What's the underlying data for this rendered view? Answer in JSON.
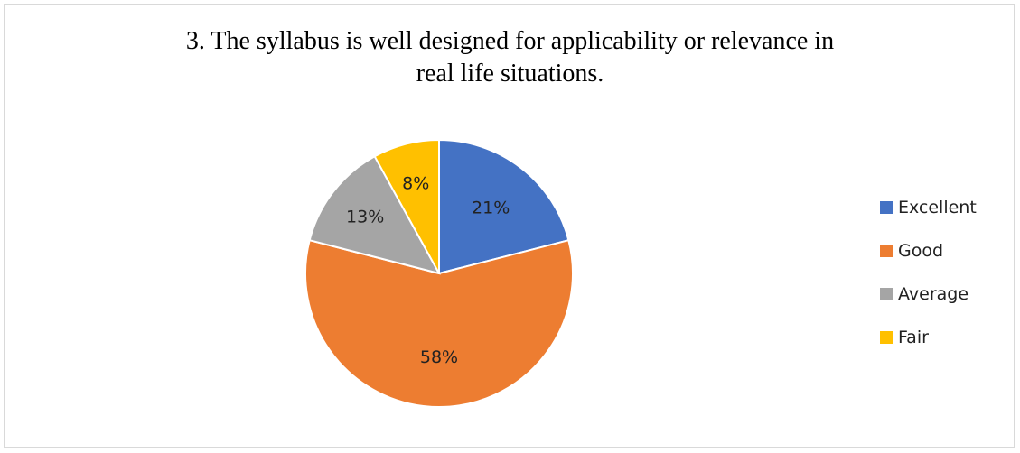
{
  "chart_data": {
    "type": "pie",
    "title": "3. The syllabus is well designed for applicability or relevance in real life situations.",
    "title_lines": [
      "3. The syllabus is well designed for applicability or relevance in",
      "real life situations."
    ],
    "categories": [
      "Excellent",
      "Good",
      "Average",
      "Fair"
    ],
    "values": [
      21,
      58,
      13,
      8
    ],
    "data_labels": [
      "21%",
      "58%",
      "13%",
      "8%"
    ],
    "colors": [
      "#4472C4",
      "#ED7D31",
      "#A5A5A5",
      "#FFC000"
    ],
    "legend_position": "right",
    "start_angle": "top",
    "direction": "clockwise"
  }
}
